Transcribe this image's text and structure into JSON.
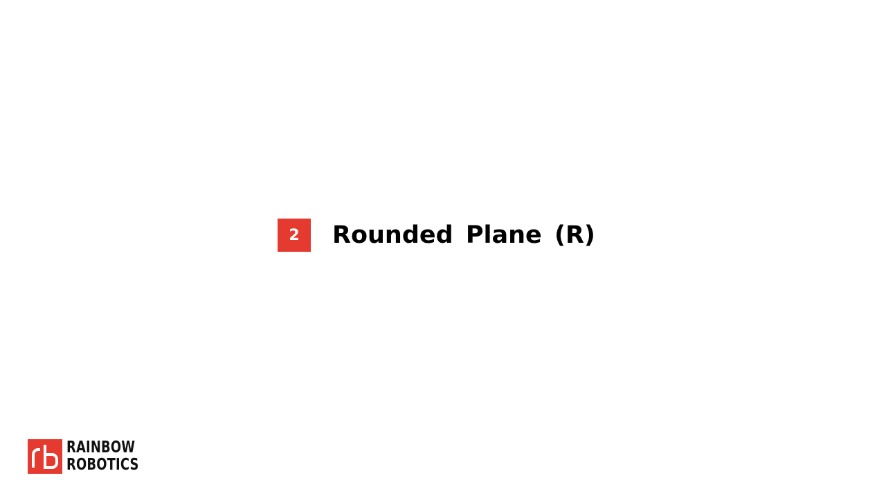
{
  "section": {
    "number": "2",
    "title": "Rounded Plane (R)"
  },
  "logo": {
    "line1": "RAINBOW",
    "line2": "ROBOTICS",
    "icon": "rb-logo-icon",
    "brand_color": "#e53a2f"
  },
  "colors": {
    "accent": "#e53a2f",
    "text": "#000000",
    "background": "#ffffff"
  }
}
